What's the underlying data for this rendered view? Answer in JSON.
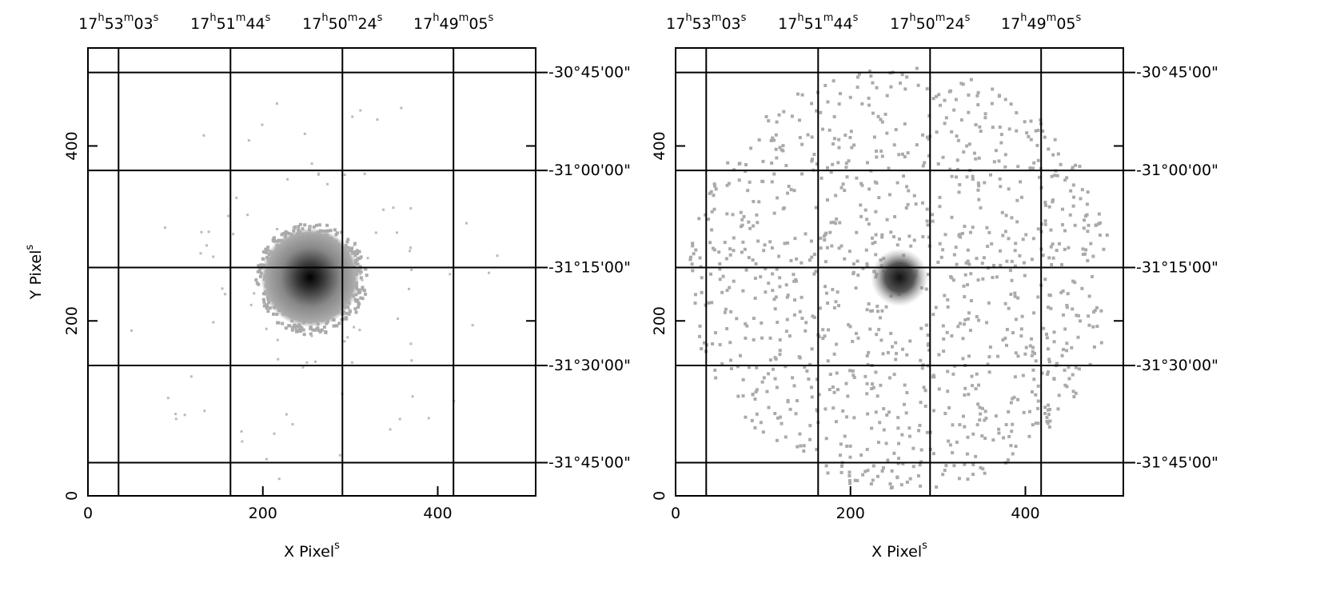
{
  "chart_data": [
    {
      "type": "image",
      "xlabel": "X Pixels",
      "ylabel": "Y Pixels",
      "xlim": [
        0,
        512
      ],
      "ylim": [
        0,
        512
      ],
      "xticks": [
        0,
        200,
        400
      ],
      "yticks": [
        0,
        200,
        400
      ],
      "x2ticks": [
        {
          "value": 35,
          "label": "17h53m03s"
        },
        {
          "value": 163,
          "label": "17h51m44s"
        },
        {
          "value": 291,
          "label": "17h50m24s"
        },
        {
          "value": 418,
          "label": "17h49m05s"
        }
      ],
      "y2ticks": [
        {
          "value": 484,
          "label": "-30°45'00\""
        },
        {
          "value": 372,
          "label": "-31°00'00\""
        },
        {
          "value": 261,
          "label": "-31°15'00\""
        },
        {
          "value": 149,
          "label": "-31°30'00\""
        },
        {
          "value": 38,
          "label": "-31°45'00\""
        }
      ],
      "grid": true
    },
    {
      "type": "image",
      "xlabel": "X Pixels",
      "xlim": [
        0,
        512
      ],
      "ylim": [
        0,
        512
      ],
      "xticks": [
        0,
        200,
        400
      ],
      "yticks": [
        0,
        200,
        400
      ],
      "x2ticks": [
        {
          "value": 35,
          "label": "17h53m03s"
        },
        {
          "value": 163,
          "label": "17h51m44s"
        },
        {
          "value": 291,
          "label": "17h50m24s"
        },
        {
          "value": 418,
          "label": "17h49m05s"
        }
      ],
      "y2ticks": [
        {
          "value": 484,
          "label": "-30°45'00\""
        },
        {
          "value": 372,
          "label": "-31°00'00\""
        },
        {
          "value": 261,
          "label": "-31°15'00\""
        },
        {
          "value": 149,
          "label": "-31°30'00\""
        },
        {
          "value": 38,
          "label": "-31°45'00\""
        }
      ],
      "grid": true
    }
  ]
}
